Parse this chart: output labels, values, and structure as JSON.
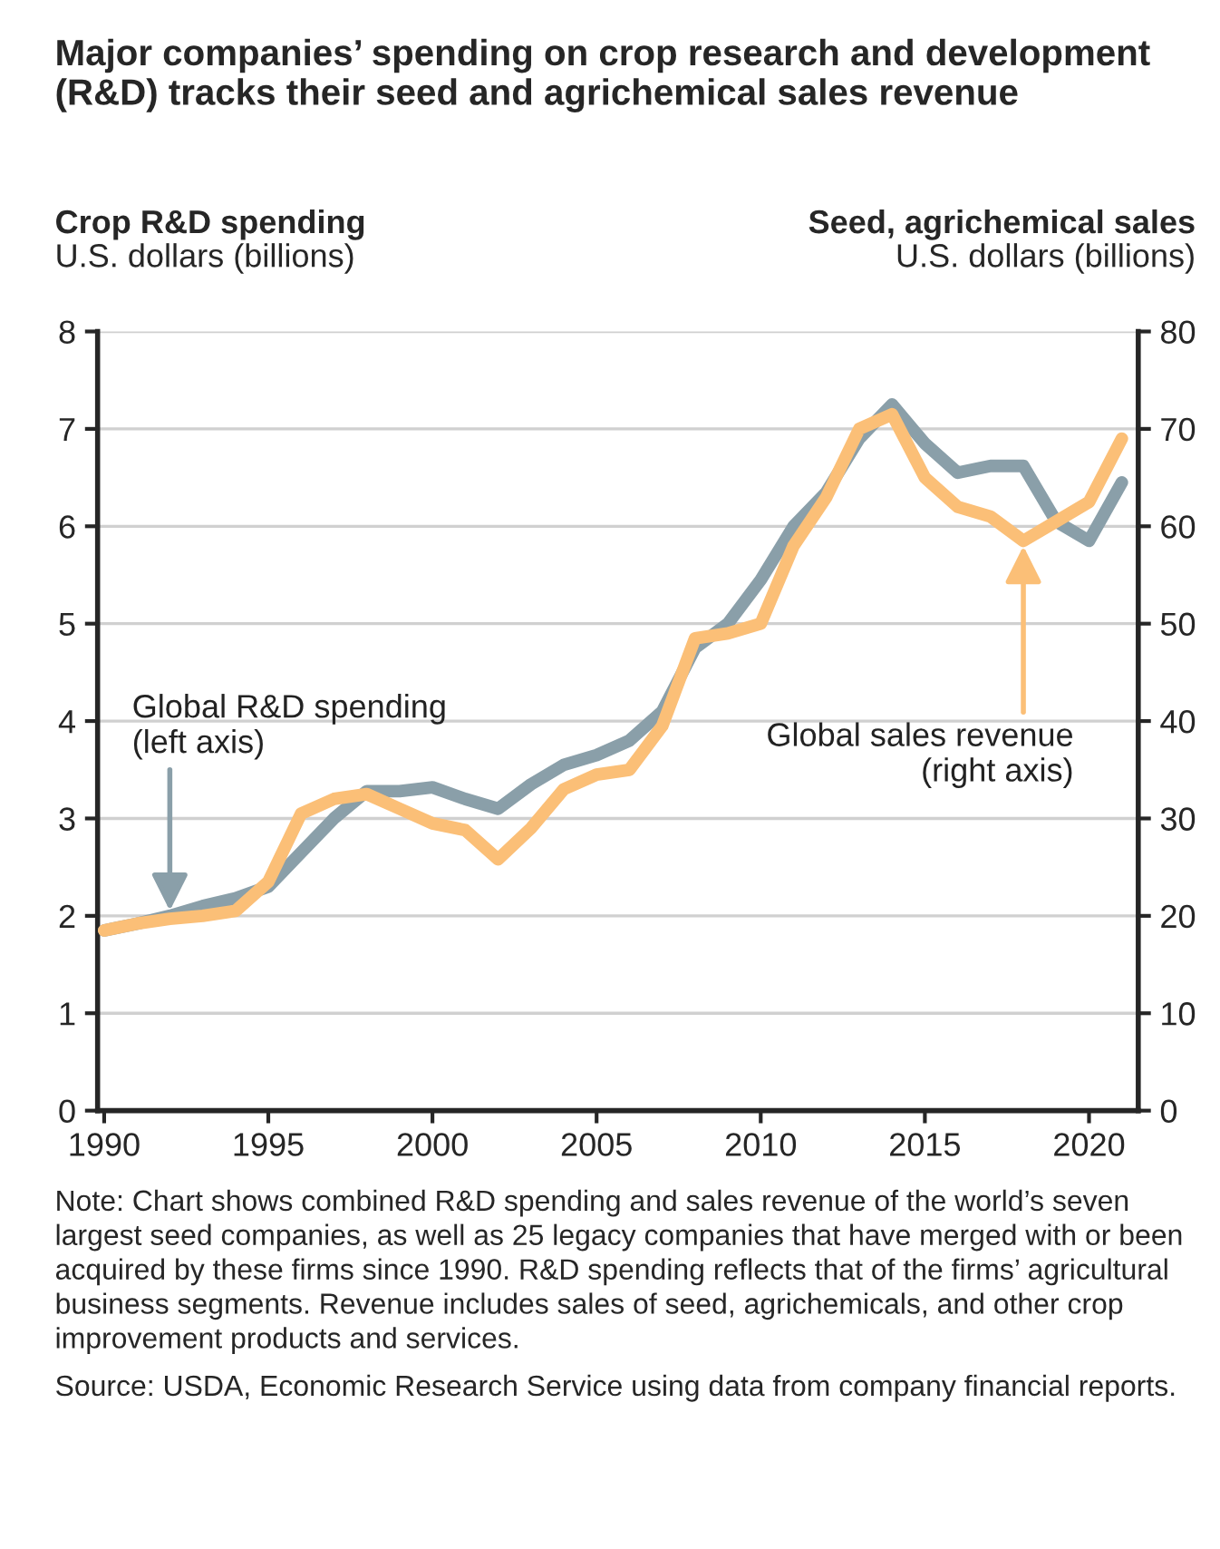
{
  "chart_data": {
    "type": "line",
    "title": "Major companies’ spending on crop research and development (R&D) tracks their seed and agrichemical sales revenue",
    "ylabel": "Crop R&D spending\nU.S. dollars (billions)",
    "y2label": "Seed, agrichemical sales\nU.S. dollars (billions)",
    "x": [
      1990,
      1991,
      1992,
      1993,
      1994,
      1995,
      1996,
      1997,
      1998,
      1999,
      2000,
      2001,
      2002,
      2003,
      2004,
      2005,
      2006,
      2007,
      2008,
      2009,
      2010,
      2011,
      2012,
      2013,
      2014,
      2015,
      2016,
      2017,
      2018,
      2019,
      2020,
      2021
    ],
    "series": [
      {
        "color": "#8a9fa9",
        "values": [
          1.85,
          1.92,
          2.0,
          2.1,
          2.18,
          2.3,
          2.65,
          3.0,
          3.28,
          3.28,
          3.32,
          3.2,
          3.1,
          3.35,
          3.55,
          3.65,
          3.8,
          4.1,
          4.75,
          5.0,
          5.45,
          6.0,
          6.35,
          6.9,
          7.25,
          6.85,
          6.55,
          6.62,
          6.62,
          6.05,
          5.85,
          6.45
        ]
      },
      {
        "color": "#fbbf77",
        "axis": "y2",
        "values": [
          18.5,
          19.2,
          19.7,
          20.0,
          20.5,
          23.5,
          30.5,
          32.0,
          32.5,
          31.0,
          29.5,
          28.8,
          25.8,
          29.0,
          33.0,
          34.5,
          35.0,
          39.5,
          48.5,
          49.0,
          50.0,
          58.0,
          63.0,
          70.0,
          71.5,
          65.0,
          62.0,
          61.0,
          58.5,
          60.5,
          62.5,
          69.0
        ]
      }
    ],
    "xlim": [
      1989.8,
      2021.5
    ],
    "xticks": [
      1990,
      1995,
      2000,
      2005,
      2010,
      2015,
      2020
    ],
    "ylim": [
      0,
      8
    ],
    "yticks": [
      0,
      1,
      2,
      3,
      4,
      5,
      6,
      7,
      8
    ],
    "y2lim": [
      0,
      80
    ],
    "y2ticks": [
      0,
      10,
      20,
      30,
      40,
      50,
      60,
      70,
      80
    ],
    "grid": "y",
    "legend": false,
    "annotations": [
      {
        "text": "Global R&D spending\n(left axis)",
        "x": 1992,
        "y": 2.0
      },
      {
        "text": "Global sales revenue\n(right axis)",
        "x": 2018,
        "y": 5.85
      },
      "Note: Chart shows combined R&D spending and sales revenue of the world’s seven largest seed companies, as well as 25 legacy companies that have merged with or been acquired by these firms since 1990. R&D spending reflects that of the firms’ agricultural business segments. Revenue includes sales of seed, agrichemicals, and other crop improvement products and services.",
      "Source: USDA, Economic Research Service using data from company financial reports."
    ]
  }
}
